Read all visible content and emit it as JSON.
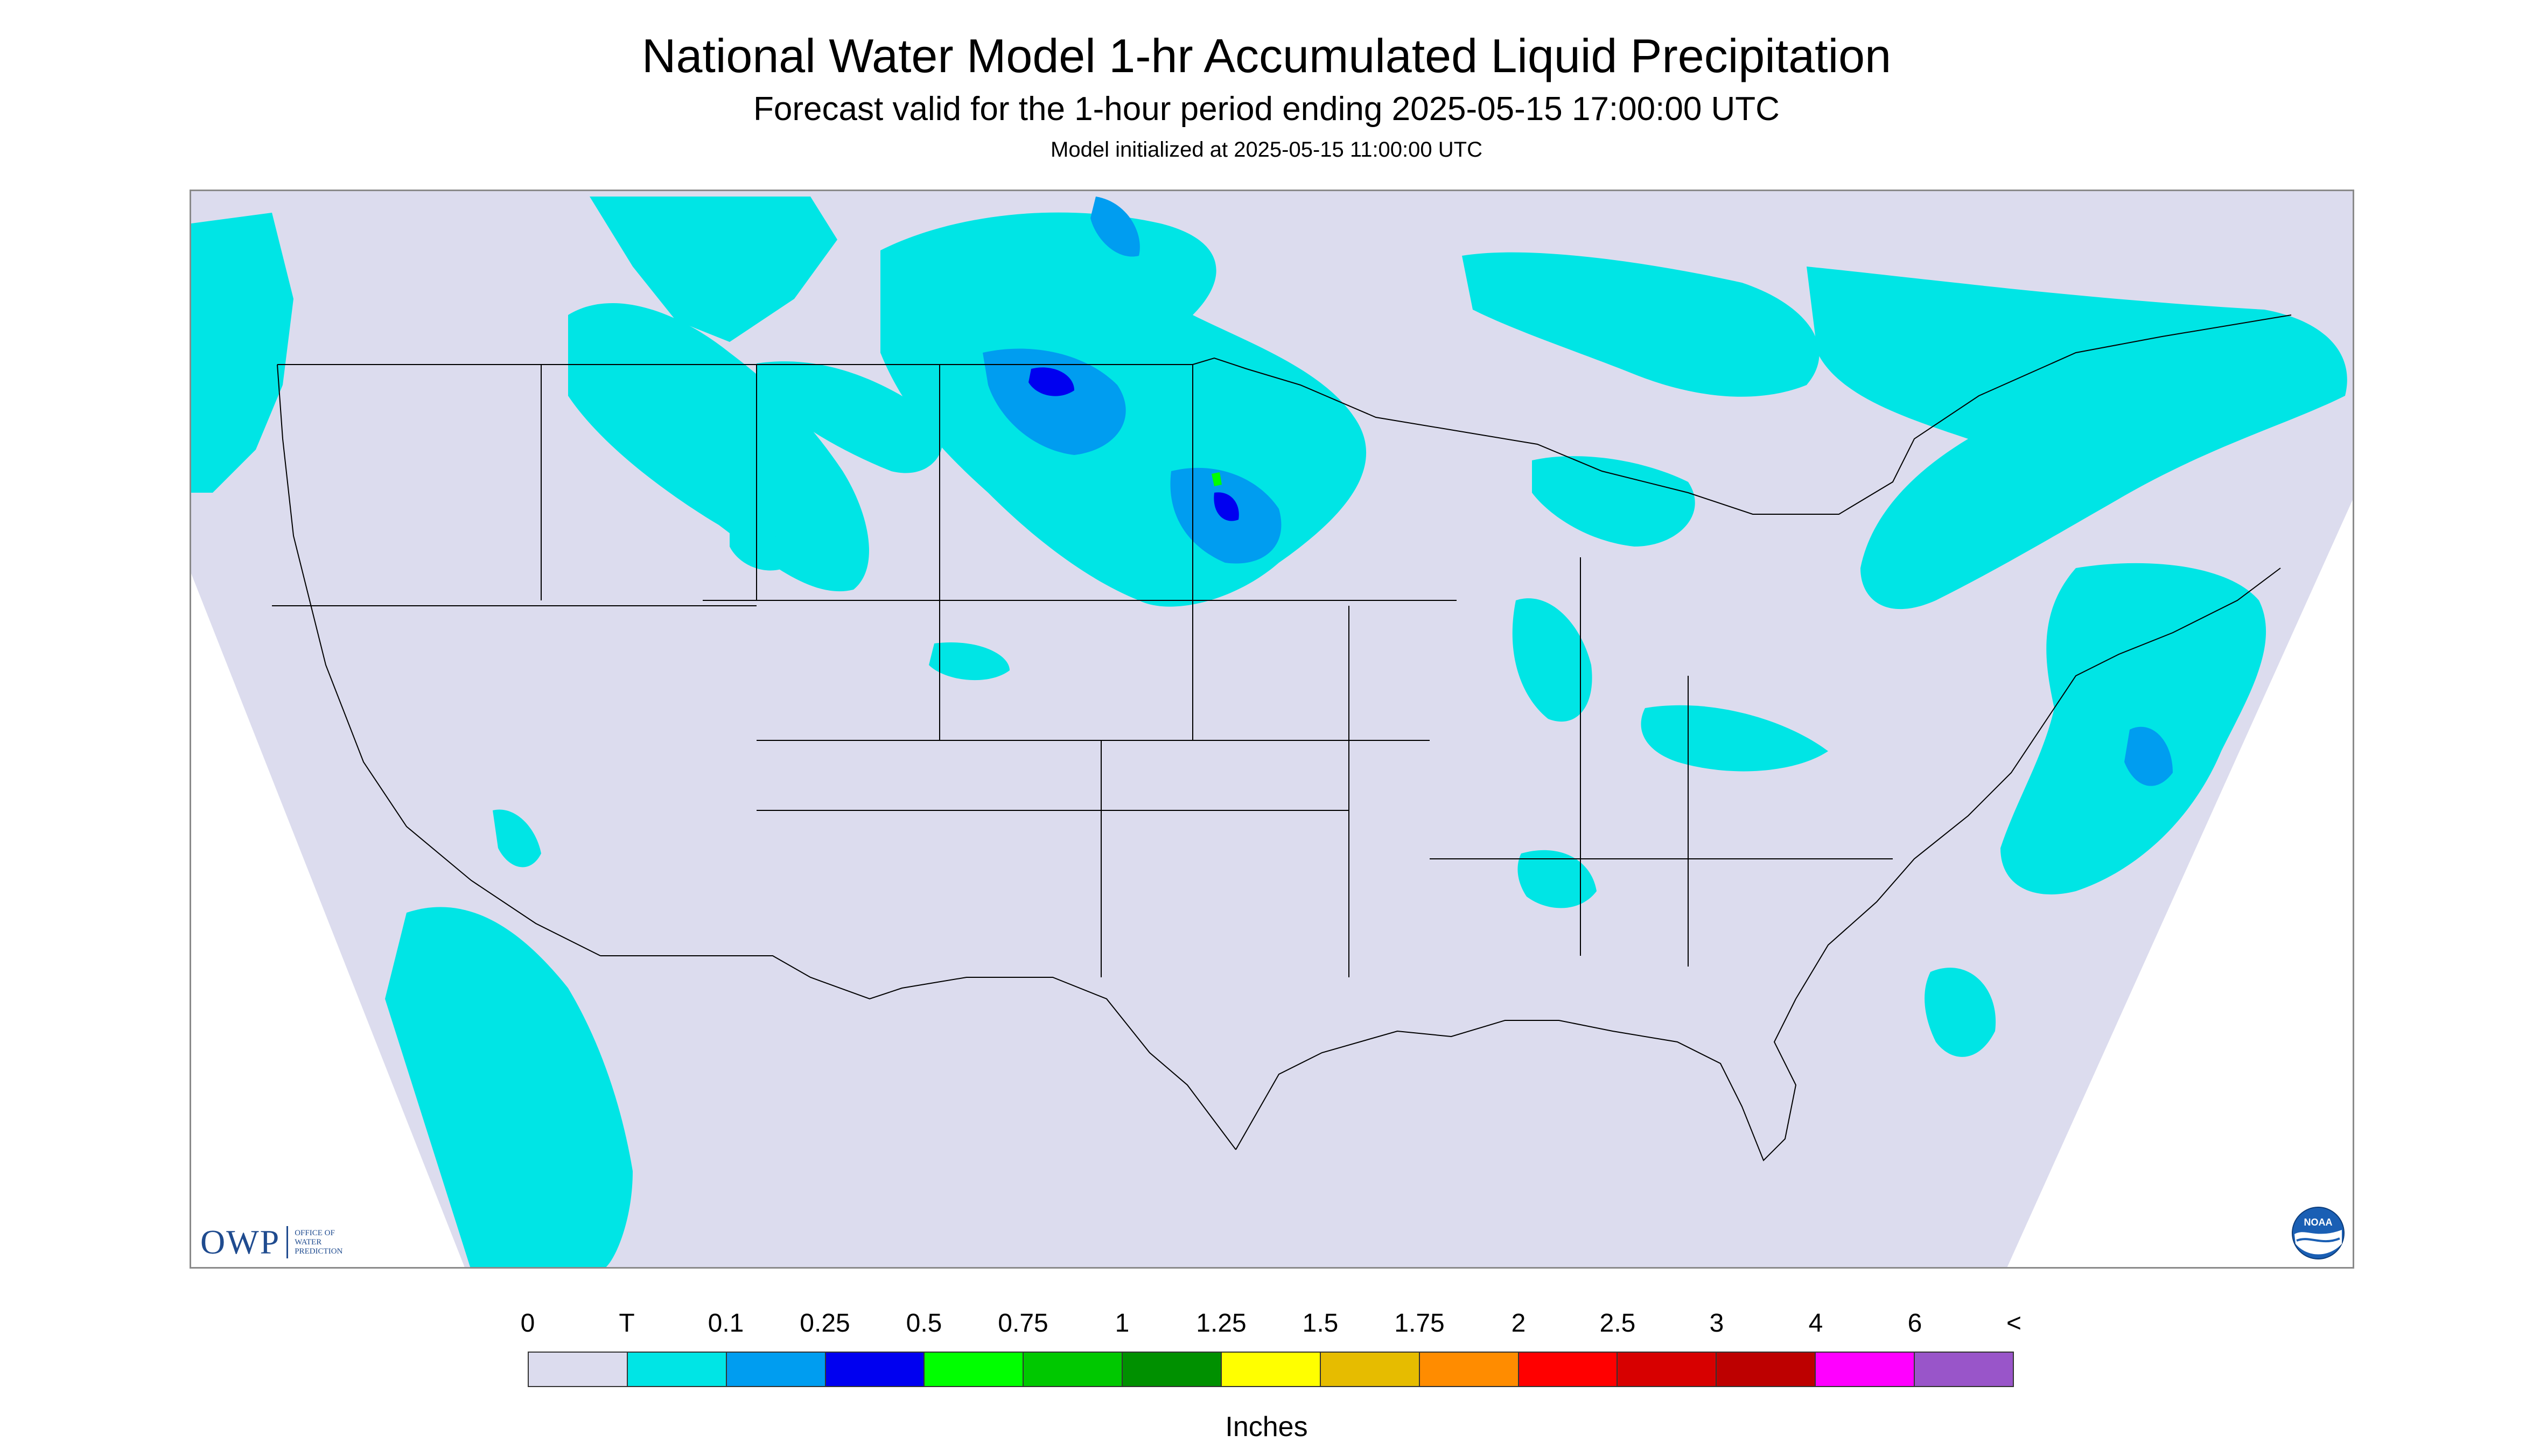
{
  "title": "National Water Model 1-hr Accumulated Liquid Precipitation",
  "subtitle": "Forecast valid for the 1-hour period ending 2025-05-15 17:00:00 UTC",
  "init_line": "Model initialized at 2025-05-15 11:00:00 UTC",
  "logos": {
    "owp_text": "OWP",
    "owp_sub_1": "Office of",
    "owp_sub_2": "Water",
    "owp_sub_3": "Prediction",
    "noaa_text": "NOAA"
  },
  "colors": {
    "no_precip": "#dcdcee",
    "trace": "#00e5e5",
    "outside_domain": "#ffffff",
    "boundary": "#000000"
  },
  "legend": {
    "units": "Inches",
    "labels": [
      "0",
      "T",
      "0.1",
      "0.25",
      "0.5",
      "0.75",
      "1",
      "1.25",
      "1.5",
      "1.75",
      "2",
      "2.5",
      "3",
      "4",
      "6",
      "<"
    ],
    "colors": [
      "#dcdcee",
      "#00e5e5",
      "#009df0",
      "#0000f0",
      "#00ff00",
      "#00c800",
      "#009000",
      "#ffff00",
      "#e6bc00",
      "#ff8c00",
      "#ff0000",
      "#d70000",
      "#bd0000",
      "#ff00ff",
      "#9955c9"
    ]
  }
}
